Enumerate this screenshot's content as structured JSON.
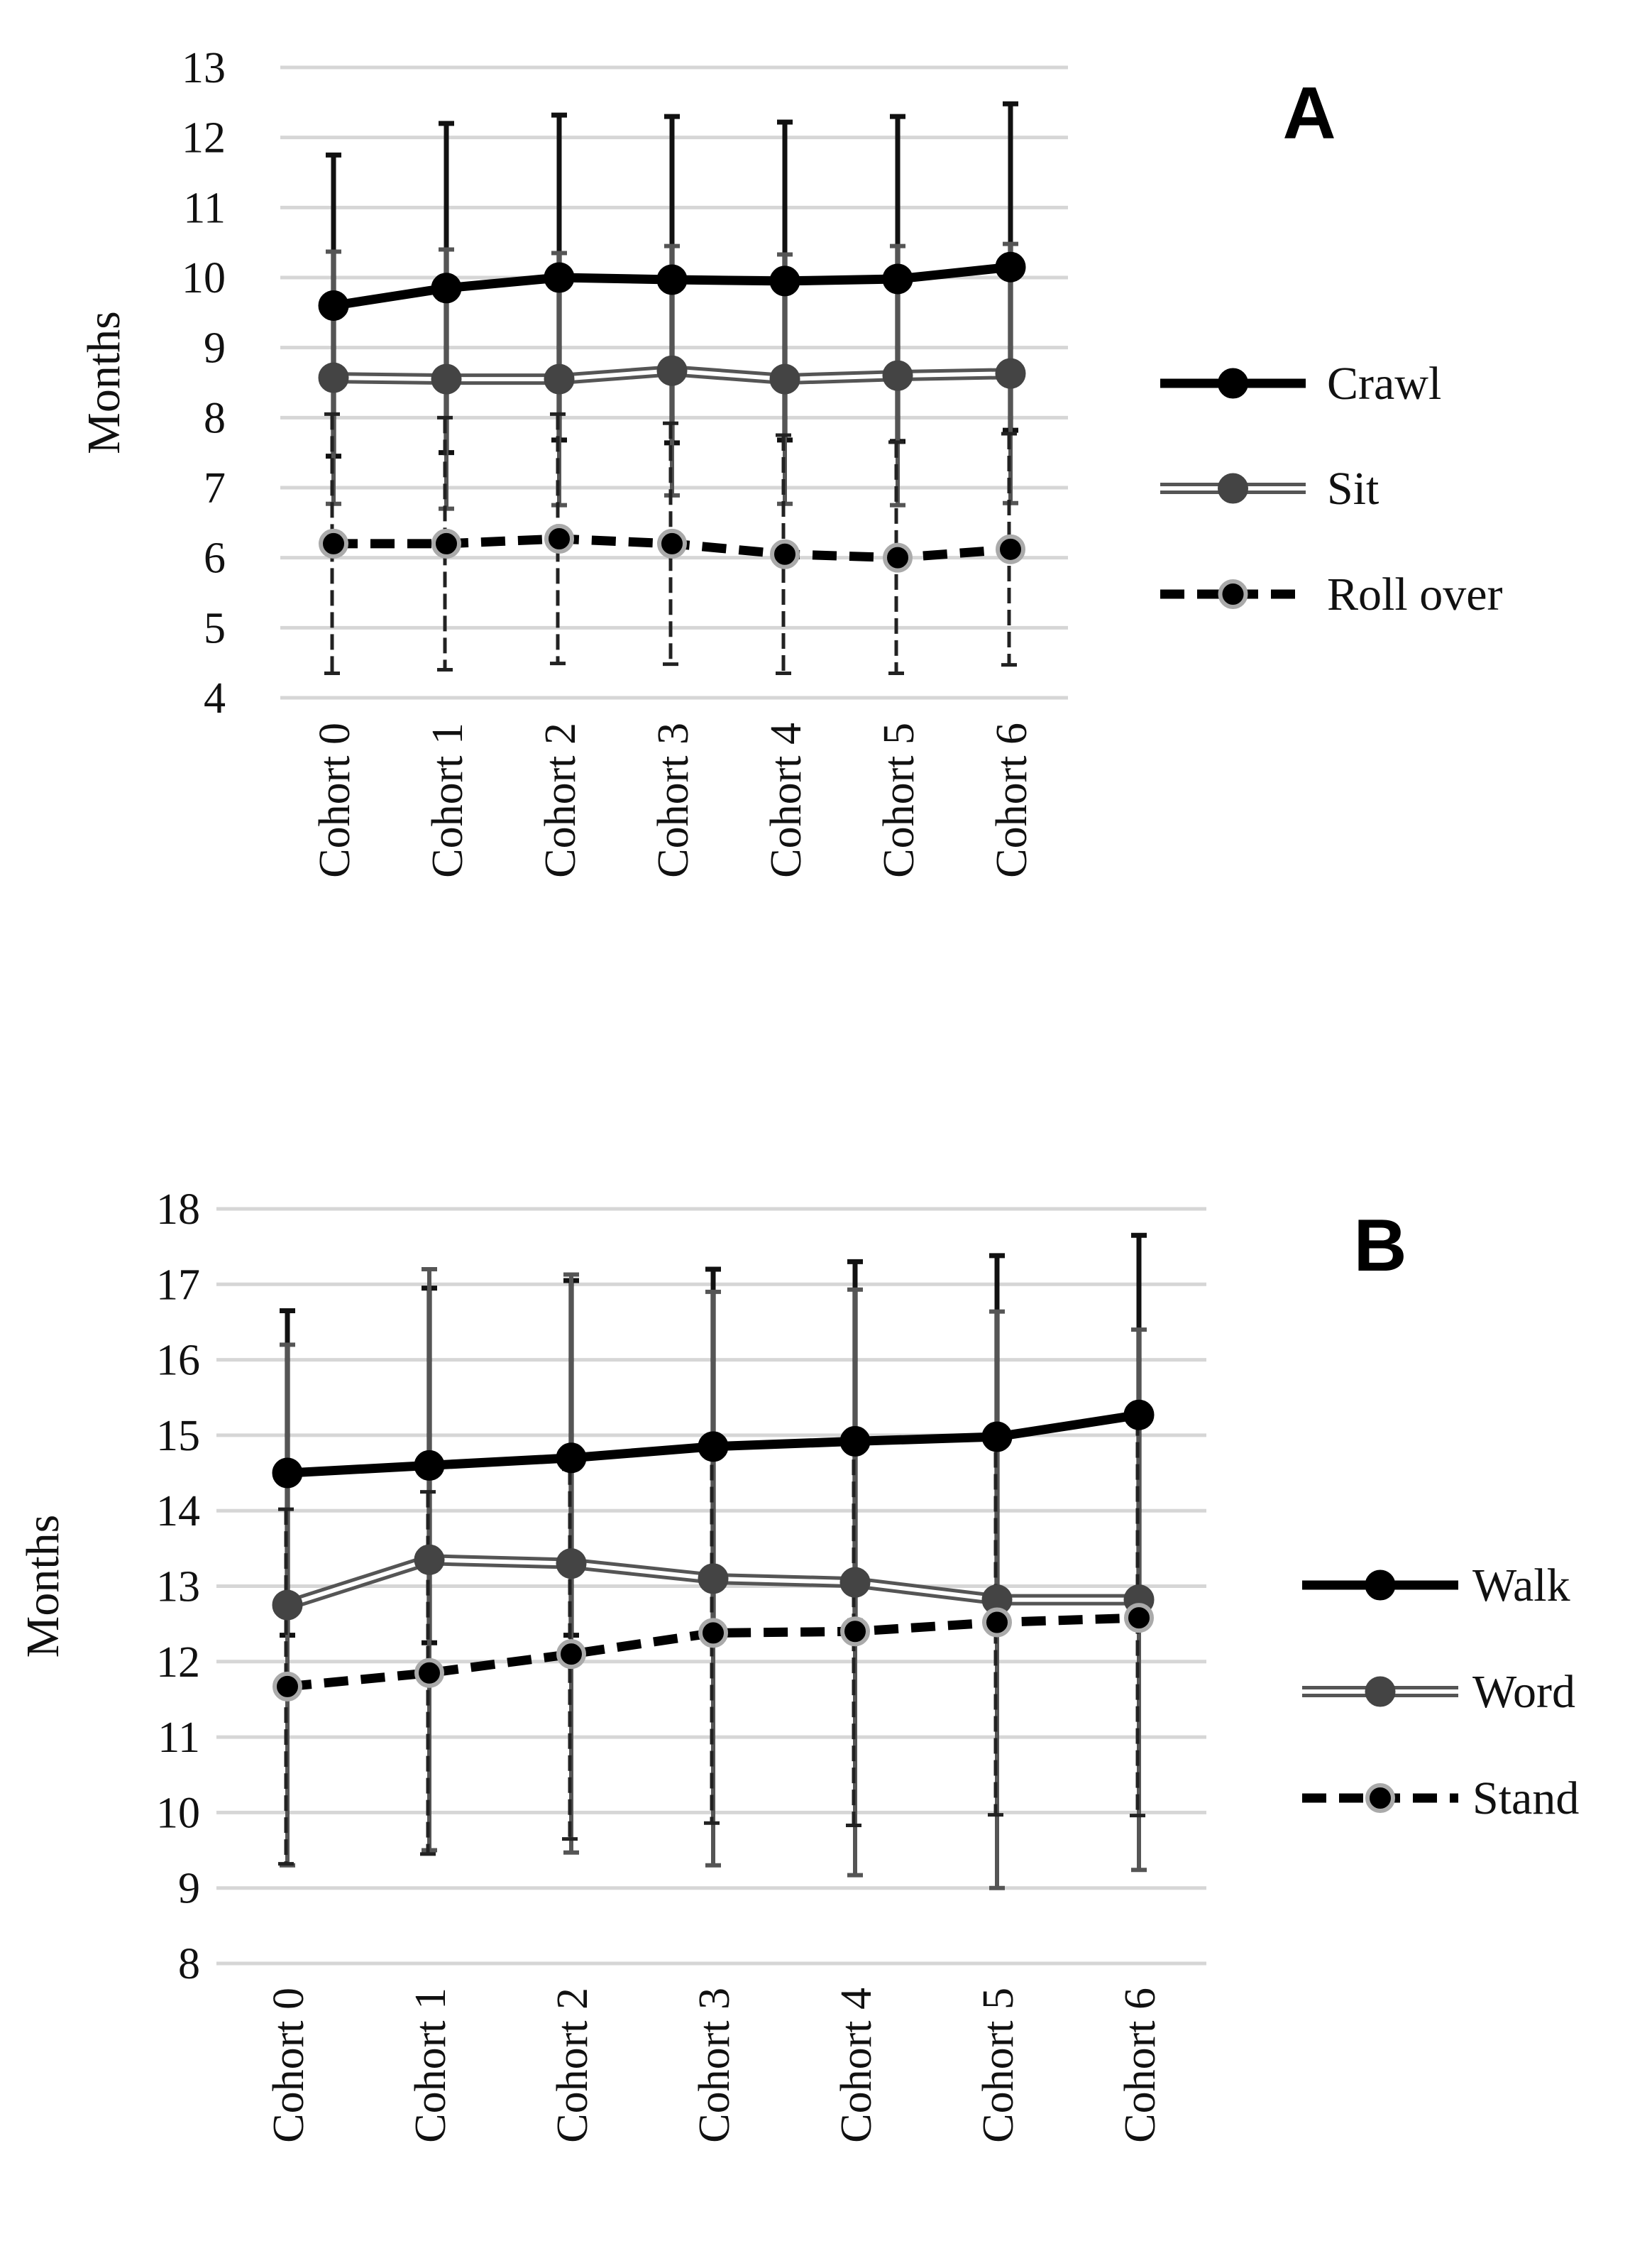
{
  "chart_data": [
    {
      "panel_label": "A",
      "type": "line",
      "categories": [
        "Cohort 0",
        "Cohort 1",
        "Cohort 2",
        "Cohort 3",
        "Cohort 4",
        "Cohort 5",
        "Cohort 6"
      ],
      "ylabel": "Months",
      "xlabel": "",
      "ylim": [
        4,
        13
      ],
      "yticks": [
        4,
        5,
        6,
        7,
        8,
        9,
        10,
        11,
        12,
        13
      ],
      "grid": true,
      "legend_position": "right",
      "series": [
        {
          "name": "Crawl",
          "style": "solid-black",
          "values": [
            9.6,
            9.85,
            10.0,
            9.97,
            9.95,
            9.98,
            10.15
          ],
          "error": [
            2.15,
            2.35,
            2.32,
            2.33,
            2.27,
            2.32,
            2.33
          ]
        },
        {
          "name": "Sit",
          "style": "double-gray",
          "values": [
            8.57,
            8.55,
            8.55,
            8.67,
            8.55,
            8.6,
            8.63
          ],
          "error": [
            1.8,
            1.85,
            1.8,
            1.78,
            1.78,
            1.85,
            1.85
          ]
        },
        {
          "name": "Roll over",
          "style": "dashed-black",
          "values": [
            6.2,
            6.2,
            6.27,
            6.2,
            6.05,
            6.0,
            6.12
          ],
          "error": [
            1.85,
            1.8,
            1.78,
            1.72,
            1.7,
            1.65,
            1.65
          ]
        }
      ]
    },
    {
      "panel_label": "B",
      "type": "line",
      "categories": [
        "Cohort 0",
        "Cohort 1",
        "Cohort 2",
        "Cohort 3",
        "Cohort 4",
        "Cohort 5",
        "Cohort 6"
      ],
      "ylabel": "Months",
      "xlabel": "",
      "ylim": [
        8,
        18
      ],
      "yticks": [
        8,
        9,
        10,
        11,
        12,
        13,
        14,
        15,
        16,
        17,
        18
      ],
      "grid": true,
      "legend_position": "right",
      "series": [
        {
          "name": "Walk",
          "style": "solid-black",
          "values": [
            14.5,
            14.6,
            14.7,
            14.85,
            14.92,
            14.98,
            15.27
          ],
          "error": [
            2.15,
            2.35,
            2.35,
            2.35,
            2.38,
            2.4,
            2.38
          ]
        },
        {
          "name": "Word",
          "style": "double-gray",
          "values": [
            12.75,
            13.35,
            13.3,
            13.1,
            13.05,
            12.82,
            12.82
          ],
          "error": [
            3.45,
            3.85,
            3.83,
            3.8,
            3.88,
            3.82,
            3.58
          ]
        },
        {
          "name": "Stand",
          "style": "dashed-black",
          "values": [
            11.67,
            11.85,
            12.1,
            12.38,
            12.4,
            12.52,
            12.58
          ],
          "error": [
            2.35,
            2.4,
            2.45,
            2.52,
            2.57,
            2.55,
            2.62
          ]
        }
      ]
    }
  ]
}
